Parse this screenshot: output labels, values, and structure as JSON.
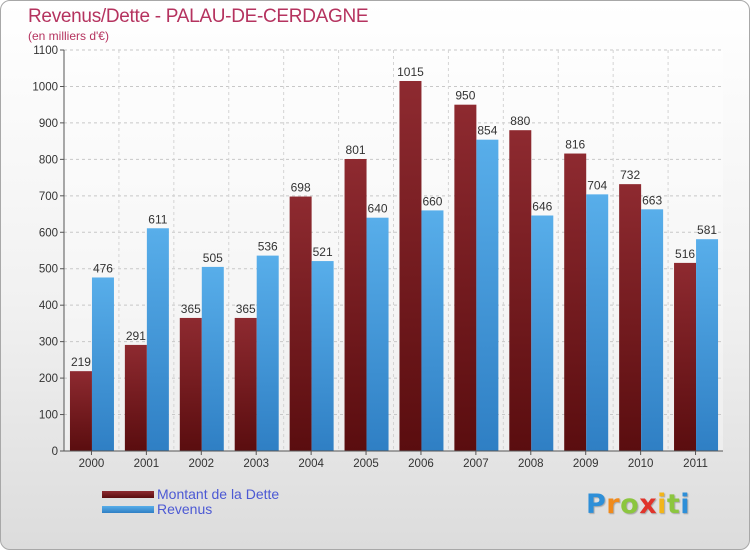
{
  "chart_data": {
    "type": "bar",
    "title": "Revenus/Dette - PALAU-DE-CERDAGNE",
    "subtitle": "(en milliers d'€)",
    "xlabel": "",
    "ylabel": "",
    "ylim": [
      0,
      1100
    ],
    "yticks": [
      0,
      100,
      200,
      300,
      400,
      500,
      600,
      700,
      800,
      900,
      1000,
      1100
    ],
    "grid": true,
    "categories": [
      "2000",
      "2001",
      "2002",
      "2003",
      "2004",
      "2005",
      "2006",
      "2007",
      "2008",
      "2009",
      "2010",
      "2011"
    ],
    "series": [
      {
        "name": "Montant de la Dette",
        "color": "#7b1f24",
        "values": [
          219,
          291,
          365,
          365,
          698,
          801,
          1015,
          950,
          880,
          816,
          732,
          516
        ]
      },
      {
        "name": "Revenus",
        "color": "#4fa3e3",
        "values": [
          476,
          611,
          505,
          536,
          521,
          640,
          660,
          854,
          646,
          704,
          663,
          581
        ]
      }
    ],
    "legend_position": "bottom-left"
  },
  "brand": {
    "letters": [
      "P",
      "r",
      "o",
      "x",
      "i",
      "t",
      "i"
    ],
    "colors": [
      "#2e8fd8",
      "#f08a1c",
      "#8cc63f",
      "#e0342b",
      "#f2b51a",
      "#8cc63f",
      "#2e8fd8"
    ]
  }
}
